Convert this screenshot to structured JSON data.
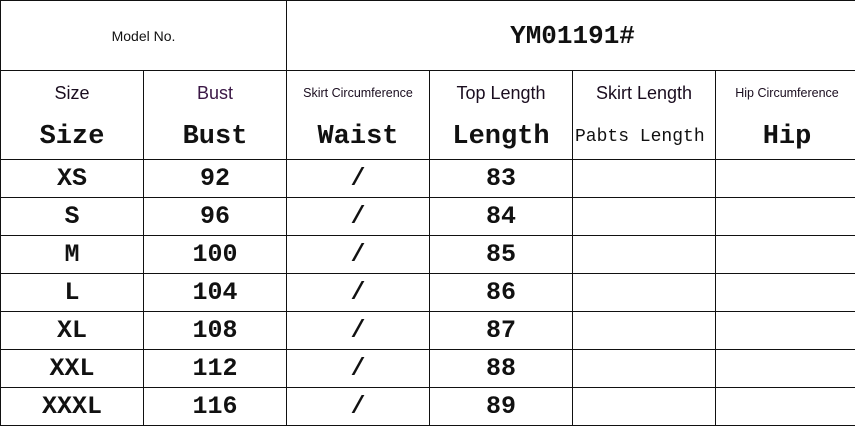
{
  "model": {
    "label": "Model No.",
    "value": "YM01191#"
  },
  "headers_en": [
    "Size",
    "Bust",
    "Skirt Circumference",
    "Top Length",
    "Skirt Length",
    "Hip Circumference"
  ],
  "headers_alt": [
    "Size",
    "Bust",
    "Waist",
    "Length",
    "Pabts Length",
    "Hip"
  ],
  "rows": [
    [
      "XS",
      "92",
      "/",
      "83",
      "",
      ""
    ],
    [
      "S",
      "96",
      "/",
      "84",
      "",
      ""
    ],
    [
      "M",
      "100",
      "/",
      "85",
      "",
      ""
    ],
    [
      "L",
      "104",
      "/",
      "86",
      "",
      ""
    ],
    [
      "XL",
      "108",
      "/",
      "87",
      "",
      ""
    ],
    [
      "XXL",
      "112",
      "/",
      "88",
      "",
      ""
    ],
    [
      "XXXL",
      "116",
      "/",
      "89",
      "",
      ""
    ]
  ]
}
